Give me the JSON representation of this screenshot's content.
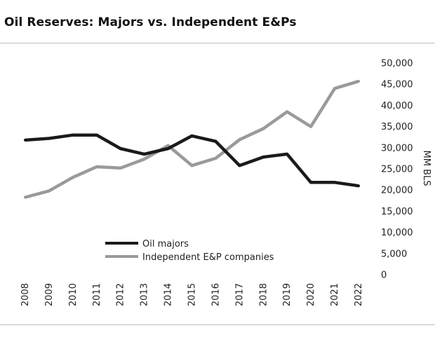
{
  "chart_data": {
    "type": "line",
    "title": "Oil Reserves: Majors vs. Independent E&Ps",
    "xlabel": "",
    "ylabel": "MM BLS",
    "x": [
      "2008",
      "2009",
      "2010",
      "2011",
      "2012",
      "2013",
      "2014",
      "2015",
      "2016",
      "2017",
      "2018",
      "2019",
      "2020",
      "2021",
      "2022"
    ],
    "ylim": [
      0,
      50000
    ],
    "yticks": [
      "0",
      "5,000",
      "10,000",
      "15,000",
      "20,000",
      "25,000",
      "30,000",
      "35,000",
      "40,000",
      "45,000",
      "50,000"
    ],
    "legend_position": "center-left",
    "grid": false,
    "series": [
      {
        "name": "Oil majors",
        "color": "#1a1a1a",
        "values": [
          31800,
          32200,
          33000,
          33000,
          29800,
          28500,
          29800,
          32800,
          31500,
          25800,
          27800,
          28500,
          21800,
          21800,
          21000
        ]
      },
      {
        "name": "Independent E&P companies",
        "color": "#9a9a9a",
        "values": [
          18300,
          19800,
          23000,
          25500,
          25200,
          27300,
          30500,
          25800,
          27500,
          31900,
          34500,
          38500,
          35000,
          44000,
          45700
        ]
      }
    ]
  }
}
